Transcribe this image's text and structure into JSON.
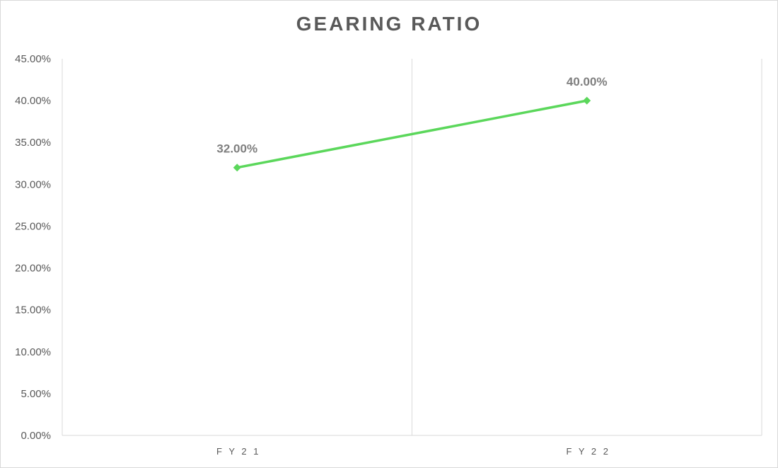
{
  "chart_data": {
    "type": "line",
    "title": "GEARING RATIO",
    "categories": [
      "FY21",
      "FY22"
    ],
    "series": [
      {
        "values": [
          0.32,
          0.4
        ],
        "labels": [
          "32.00%",
          "40.00%"
        ],
        "color": "#5BD75B"
      }
    ],
    "ylim": [
      0,
      0.45
    ],
    "yticks": [
      0,
      0.05,
      0.1,
      0.15,
      0.2,
      0.25,
      0.3,
      0.35,
      0.4,
      0.45
    ],
    "ytick_labels": [
      "0.00%",
      "5.00%",
      "10.00%",
      "15.00%",
      "20.00%",
      "25.00%",
      "30.00%",
      "35.00%",
      "40.00%",
      "45.00%"
    ],
    "xlabel": "",
    "ylabel": "",
    "grid": "vertical",
    "legend": "none",
    "marker": "diamond"
  },
  "colors": {
    "axis": "#d9d9d9",
    "text": "#595959",
    "data_label": "#7f7f7f"
  }
}
